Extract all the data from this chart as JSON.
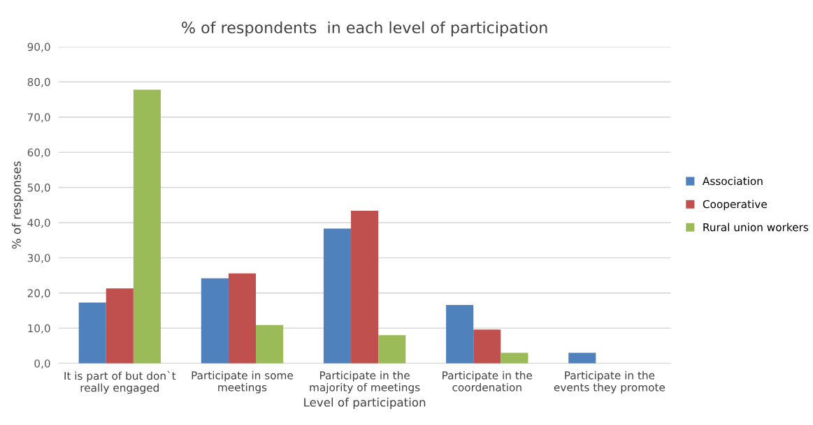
{
  "chart_data": {
    "type": "bar",
    "title": "% of respondents  in each level of participation",
    "xlabel": "Level of participation",
    "ylabel": "% of responses",
    "categories": [
      "It is part of but don`t\nreally engaged",
      "Participate in some\nmeetings",
      "Participate in the\nmajority of meetings",
      "Participate in the\ncoordenation",
      "Participate in the\nevents they promote"
    ],
    "series": [
      {
        "name": "Association",
        "color": "#4f81bd",
        "values": [
          17.3,
          24.2,
          38.3,
          16.6,
          3.0
        ]
      },
      {
        "name": "Cooperative",
        "color": "#c0504d",
        "values": [
          21.3,
          25.6,
          43.4,
          9.6,
          0
        ]
      },
      {
        "name": "Rural union workers",
        "color": "#9bbb59",
        "values": [
          77.8,
          10.9,
          8.0,
          3.0,
          0
        ]
      }
    ],
    "ylim": [
      0,
      90
    ],
    "yticks": [
      {
        "value": 0,
        "label": "0,0"
      },
      {
        "value": 10,
        "label": "10,0"
      },
      {
        "value": 20,
        "label": "20,0"
      },
      {
        "value": 30,
        "label": "30,0"
      },
      {
        "value": 40,
        "label": "40,0"
      },
      {
        "value": 50,
        "label": "50,0"
      },
      {
        "value": 60,
        "label": "60,0"
      },
      {
        "value": 70,
        "label": "70,0"
      },
      {
        "value": 80,
        "label": "80,0"
      },
      {
        "value": 90,
        "label": "90,0"
      }
    ],
    "grid": "y",
    "legend": "right"
  }
}
